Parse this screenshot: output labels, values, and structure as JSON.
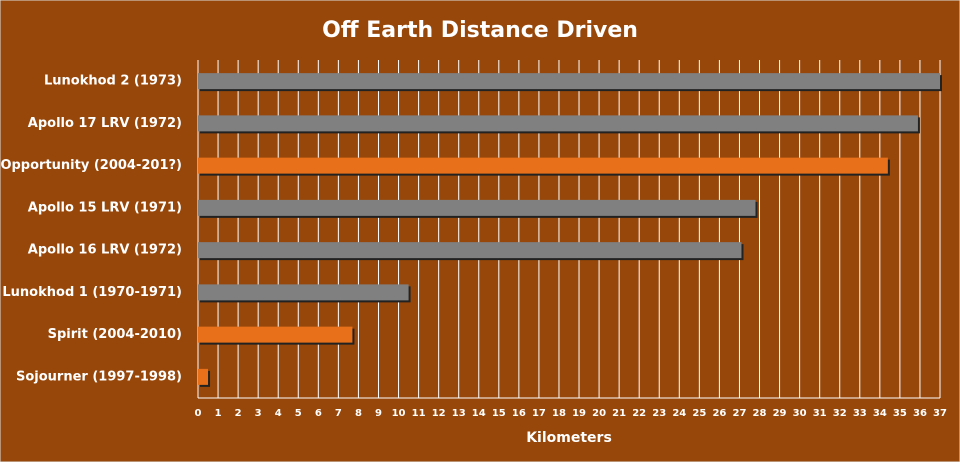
{
  "chart_data": {
    "type": "barh",
    "title": "Off Earth Distance Driven",
    "x_label": "Kilometers",
    "categories": [
      "Lunokhod 2 (1973)",
      "Apollo 17 LRV (1972)",
      "Opportunity (2004-201?)",
      "Apollo 15 LRV (1971)",
      "Apollo 16 LRV (1972)",
      "Lunokhod 1 (1970-1971)",
      "Spirit (2004-2010)",
      "Sojourner (1997-1998)"
    ],
    "values": [
      37,
      35.9,
      34.4,
      27.8,
      27.1,
      10.5,
      7.7,
      0.5
    ],
    "colors": [
      "#808080",
      "#808080",
      "#e8701a",
      "#808080",
      "#808080",
      "#808080",
      "#e8701a",
      "#e8701a"
    ],
    "xlim": [
      0,
      37
    ],
    "xticks": [
      0,
      1,
      2,
      3,
      4,
      5,
      6,
      7,
      8,
      9,
      10,
      11,
      12,
      13,
      14,
      15,
      16,
      17,
      18,
      19,
      20,
      21,
      22,
      23,
      24,
      25,
      26,
      27,
      28,
      29,
      30,
      31,
      32,
      33,
      34,
      35,
      36,
      37
    ],
    "grid": true
  }
}
